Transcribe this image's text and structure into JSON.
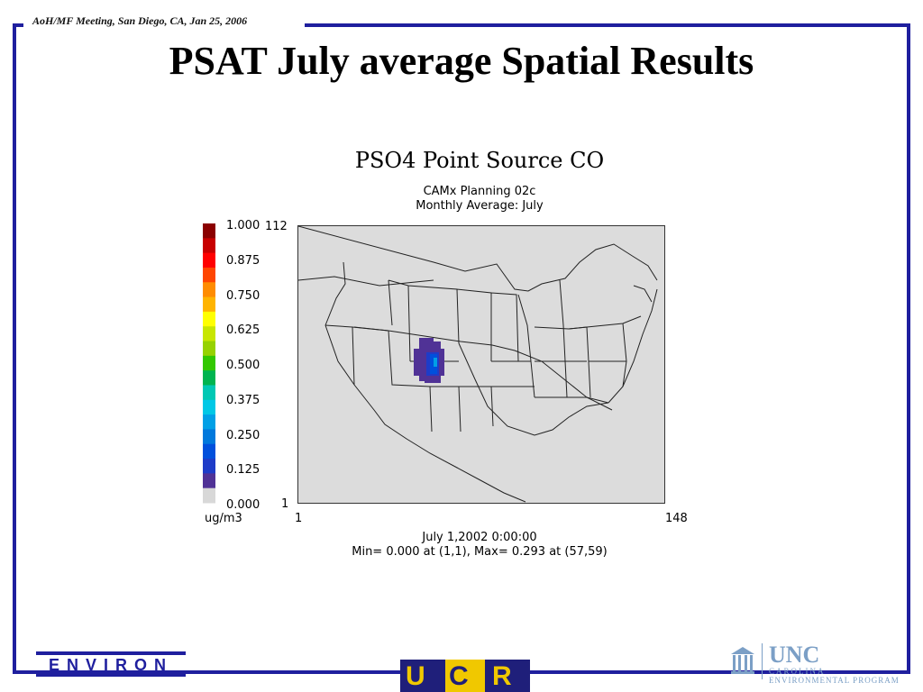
{
  "meeting_label": "AoH/MF Meeting, San Diego, CA,  Jan 25, 2006",
  "slide_title": "PSAT July average Spatial Results",
  "plot": {
    "title": "PSO4 Point Source CO",
    "subtitle1": "CAMx Planning 02c",
    "subtitle2": "Monthly Average: July",
    "y_top": "112",
    "y_bottom": "1",
    "x_left": "1",
    "x_right": "148",
    "datetime": "July 1,2002 0:00:00",
    "minmax": "Min=  0.000 at (1,1), Max=  0.293 at (57,59)",
    "unit": "ug/m3",
    "legend_labels": [
      "1.000",
      "0.875",
      "0.750",
      "0.625",
      "0.500",
      "0.375",
      "0.250",
      "0.125",
      "0.000"
    ],
    "legend_colors": [
      "#8b0000",
      "#c80000",
      "#ff0000",
      "#ff4500",
      "#ff8c00",
      "#ffb400",
      "#ffff00",
      "#c8e600",
      "#96d200",
      "#32c800",
      "#00b450",
      "#00c8b4",
      "#00c8e6",
      "#00a0e6",
      "#0078dc",
      "#0050dc",
      "#1e3cc8",
      "#503296",
      "#d8d8d8"
    ]
  },
  "logos": {
    "environ": "ENVIRON",
    "ucr_u": "U",
    "ucr_c": "C",
    "ucr_r": "R",
    "unc": "UNC",
    "unc_line1": "CAROLINA",
    "unc_line2": "ENVIRONMENTAL PROGRAM"
  }
}
